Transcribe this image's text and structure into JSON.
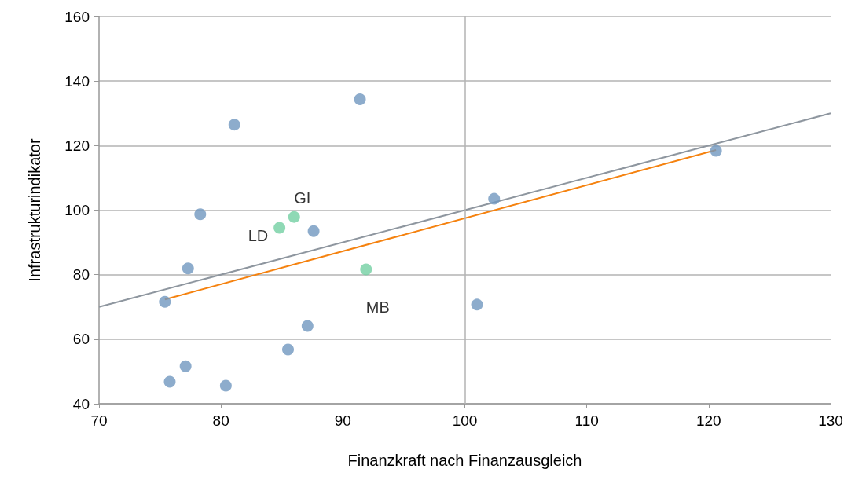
{
  "chart_data": {
    "type": "scatter",
    "xlabel": "Finanzkraft nach Finanzausgleich",
    "ylabel": "Infrastrukturindikator",
    "xlim": [
      70,
      130
    ],
    "xticks": [
      70,
      80,
      90,
      100,
      110,
      120,
      130
    ],
    "ylim": [
      40,
      160
    ],
    "yticks": [
      40,
      60,
      80,
      100,
      120,
      140,
      160
    ],
    "grid": "y",
    "marker": "circle",
    "ref_lines": [
      {
        "axis": "x",
        "value": 100,
        "label": null,
        "color": "#b3b3b3"
      }
    ],
    "series": [
      {
        "color": "#7197bf",
        "x": [
          75.4,
          81.1,
          91.4,
          78.3,
          77.3,
          87.6,
          102.4,
          120.6,
          101.0,
          87.1,
          85.5,
          77.1,
          75.8,
          80.4
        ],
        "values": [
          71.6,
          126.5,
          134.3,
          98.7,
          81.9,
          93.5,
          103.5,
          118.4,
          70.7,
          64.1,
          56.8,
          51.6,
          46.8,
          45.6
        ]
      },
      {
        "color": "#73cfa3",
        "x": [
          84.8,
          86.0,
          91.9
        ],
        "values": [
          94.5,
          97.9,
          81.6
        ]
      },
      {
        "type": "line",
        "color": "#8e969f",
        "marker": "none",
        "x": [
          70,
          130
        ],
        "values": [
          70,
          130
        ]
      },
      {
        "type": "line",
        "color": "#f5820f",
        "marker": "none",
        "x": [
          75.4,
          120.6
        ],
        "values": [
          72.3,
          118.6
        ]
      }
    ],
    "annotations": [
      {
        "text": "GI",
        "x": 86.0,
        "y": 97.9
      },
      {
        "text": "LD",
        "x": 84.8,
        "y": 94.5
      },
      {
        "text": "MB",
        "x": 91.9,
        "y": 81.6
      }
    ]
  }
}
